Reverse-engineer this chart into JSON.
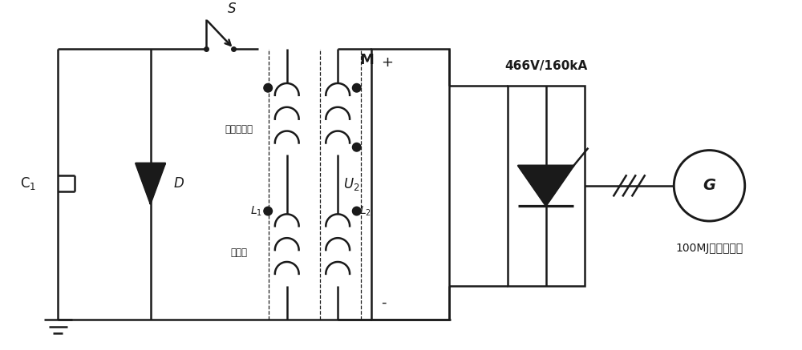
{
  "bg_color": "#ffffff",
  "line_color": "#1a1a1a",
  "line_width": 1.8,
  "labels": {
    "C1": "C$_1$",
    "D": "D",
    "S": "S",
    "M": "M",
    "L1": "$L_1$",
    "L2": "$L_2$",
    "U2": "U$_2$",
    "voltage": "466V/160kA",
    "generator_label": "G",
    "generator_text": "100MJ脉冲发电机",
    "decoupling": "去耦变压器",
    "bifilar": "双线圈"
  }
}
